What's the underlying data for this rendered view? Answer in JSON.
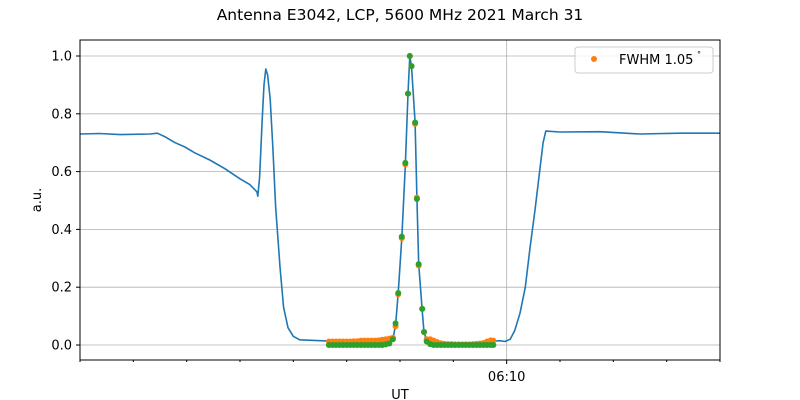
{
  "chart_data": {
    "type": "line",
    "title": "Antenna E3042, LCP, 5600 MHz 2021 March 31",
    "xlabel": "UT",
    "ylabel": "a.u.",
    "xlim": [
      "06:02:00",
      "06:14:00"
    ],
    "ylim": [
      -0.05,
      1.055
    ],
    "x_major_ticks": [
      {
        "t": "06:10:00",
        "label": "06:10"
      }
    ],
    "x_minor_ticks": [
      "06:02:00",
      "06:03:00",
      "06:04:00",
      "06:05:00",
      "06:06:00",
      "06:07:00",
      "06:08:00",
      "06:09:00",
      "06:11:00",
      "06:12:00",
      "06:13:00",
      "06:14:00"
    ],
    "y_ticks": [
      0.0,
      0.2,
      0.4,
      0.6,
      0.8,
      1.0
    ],
    "y_tick_labels": [
      "0.0",
      "0.2",
      "0.4",
      "0.6",
      "0.8",
      "1.0"
    ],
    "grid": true,
    "legend": {
      "placement": "top-right",
      "entries": [
        "FWHM 1.05$^\\circ$"
      ],
      "display": [
        "FWHM 1.05",
        "°"
      ]
    },
    "series": [
      {
        "kind": "line",
        "color": "#1f77b4",
        "x": [
          "06:02:00",
          "06:02:22",
          "06:02:45",
          "06:03:19",
          "06:03:27",
          "06:03:36",
          "06:03:47",
          "06:03:58",
          "06:04:09",
          "06:04:26",
          "06:04:43",
          "06:05:00",
          "06:05:11",
          "06:05:19",
          "06:05:20",
          "06:05:22",
          "06:05:25",
          "06:05:27",
          "06:05:29",
          "06:05:31",
          "06:05:34",
          "06:05:37",
          "06:05:40",
          "06:05:45",
          "06:05:49",
          "06:05:54",
          "06:06:00",
          "06:06:07",
          "06:06:30",
          "06:06:52",
          "06:07:26",
          "06:07:43",
          "06:07:52",
          "06:07:55",
          "06:07:58",
          "06:08:02",
          "06:08:06",
          "06:08:09",
          "06:08:11",
          "06:08:13",
          "06:08:17",
          "06:08:19",
          "06:08:21",
          "06:08:25",
          "06:08:27",
          "06:08:30",
          "06:08:36",
          "06:08:56",
          "06:09:30",
          "06:09:41",
          "06:09:52",
          "06:09:58",
          "06:10:04",
          "06:10:09",
          "06:10:15",
          "06:10:21",
          "06:10:26",
          "06:10:32",
          "06:10:37",
          "06:10:41",
          "06:10:44",
          "06:11:00",
          "06:11:45",
          "06:12:30",
          "06:13:15",
          "06:14:00"
        ],
        "y": [
          0.73,
          0.732,
          0.728,
          0.73,
          0.733,
          0.72,
          0.7,
          0.685,
          0.665,
          0.64,
          0.61,
          0.575,
          0.555,
          0.53,
          0.515,
          0.58,
          0.78,
          0.9,
          0.955,
          0.935,
          0.85,
          0.68,
          0.48,
          0.27,
          0.13,
          0.06,
          0.03,
          0.018,
          0.015,
          0.012,
          0.013,
          0.015,
          0.02,
          0.07,
          0.18,
          0.37,
          0.62,
          0.87,
          1.0,
          0.96,
          0.77,
          0.51,
          0.28,
          0.12,
          0.045,
          0.015,
          0.005,
          0.002,
          0.003,
          0.012,
          0.015,
          0.012,
          0.02,
          0.05,
          0.11,
          0.2,
          0.33,
          0.47,
          0.6,
          0.7,
          0.74,
          0.737,
          0.738,
          0.73,
          0.733,
          0.733
        ]
      },
      {
        "kind": "scatter",
        "color": "#ff7f0e",
        "name": "FWHM 1.05°",
        "x": [
          "06:06:40",
          "06:06:44",
          "06:06:48",
          "06:06:52",
          "06:06:56",
          "06:07:00",
          "06:07:04",
          "06:07:08",
          "06:07:12",
          "06:07:16",
          "06:07:20",
          "06:07:24",
          "06:07:28",
          "06:07:32",
          "06:07:36",
          "06:07:40",
          "06:07:44",
          "06:07:48",
          "06:07:52",
          "06:07:55",
          "06:07:58",
          "06:08:02",
          "06:08:06",
          "06:08:09",
          "06:08:11",
          "06:08:13",
          "06:08:17",
          "06:08:19",
          "06:08:21",
          "06:08:25",
          "06:08:27",
          "06:08:30",
          "06:08:34",
          "06:08:38",
          "06:08:42",
          "06:08:46",
          "06:08:50",
          "06:08:54",
          "06:08:58",
          "06:09:02",
          "06:09:06",
          "06:09:10",
          "06:09:14",
          "06:09:18",
          "06:09:22",
          "06:09:26",
          "06:09:30",
          "06:09:34",
          "06:09:38",
          "06:09:42",
          "06:09:45"
        ],
        "y": [
          0.012,
          0.012,
          0.012,
          0.012,
          0.012,
          0.012,
          0.012,
          0.013,
          0.013,
          0.015,
          0.015,
          0.015,
          0.015,
          0.015,
          0.016,
          0.018,
          0.02,
          0.022,
          0.025,
          0.065,
          0.175,
          0.37,
          0.625,
          0.87,
          1.0,
          0.965,
          0.765,
          0.51,
          0.275,
          0.125,
          0.045,
          0.02,
          0.02,
          0.015,
          0.01,
          0.006,
          0.004,
          0.003,
          0.003,
          0.002,
          0.002,
          0.002,
          0.002,
          0.002,
          0.003,
          0.004,
          0.005,
          0.007,
          0.012,
          0.016,
          0.015
        ]
      },
      {
        "kind": "scatter",
        "color": "#2ca02c",
        "x": [
          "06:06:40",
          "06:06:44",
          "06:06:48",
          "06:06:52",
          "06:06:56",
          "06:07:00",
          "06:07:04",
          "06:07:08",
          "06:07:12",
          "06:07:16",
          "06:07:20",
          "06:07:24",
          "06:07:28",
          "06:07:32",
          "06:07:36",
          "06:07:40",
          "06:07:44",
          "06:07:48",
          "06:07:52",
          "06:07:55",
          "06:07:58",
          "06:08:02",
          "06:08:06",
          "06:08:09",
          "06:08:11",
          "06:08:13",
          "06:08:17",
          "06:08:19",
          "06:08:21",
          "06:08:25",
          "06:08:27",
          "06:08:30",
          "06:08:34",
          "06:08:38",
          "06:08:42",
          "06:08:46",
          "06:08:50",
          "06:08:54",
          "06:08:58",
          "06:09:02",
          "06:09:06",
          "06:09:10",
          "06:09:14",
          "06:09:18",
          "06:09:22",
          "06:09:26",
          "06:09:30",
          "06:09:34",
          "06:09:38",
          "06:09:42",
          "06:09:45"
        ],
        "y": [
          0.0,
          0.0,
          0.0,
          0.0,
          0.0,
          0.0,
          0.0,
          0.0,
          0.0,
          0.0,
          0.0,
          0.0,
          0.0,
          0.0,
          0.0,
          0.0,
          0.002,
          0.005,
          0.02,
          0.075,
          0.18,
          0.375,
          0.63,
          0.87,
          1.0,
          0.965,
          0.77,
          0.505,
          0.28,
          0.125,
          0.045,
          0.012,
          0.003,
          0.0,
          0.0,
          0.0,
          0.0,
          0.0,
          0.0,
          0.0,
          0.0,
          0.0,
          0.0,
          0.0,
          0.0,
          0.0,
          0.0,
          0.0,
          0.0,
          0.0,
          0.0
        ]
      }
    ]
  }
}
